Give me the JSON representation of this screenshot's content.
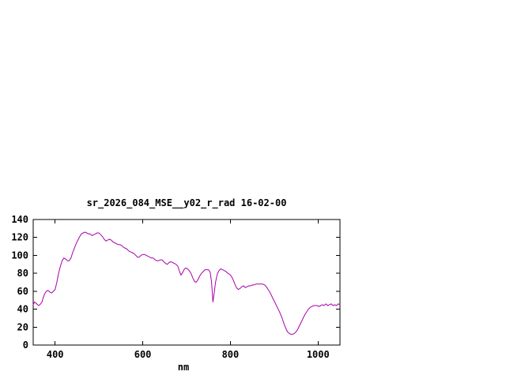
{
  "chart_data": {
    "type": "line",
    "title": "sr_2026_084_MSE__y02_r_rad 16-02-00",
    "xlabel": "nm",
    "ylabel": "",
    "xlim": [
      350,
      1050
    ],
    "ylim": [
      0,
      140
    ],
    "x_ticks": [
      400,
      600,
      800,
      1000
    ],
    "y_ticks": [
      0,
      20,
      40,
      60,
      80,
      100,
      120,
      140
    ],
    "grid": false,
    "legend_position": "none",
    "line_color": "#aa00aa",
    "axis_color": "#000000",
    "points": [
      [
        350,
        45
      ],
      [
        353,
        48
      ],
      [
        356,
        47
      ],
      [
        360,
        45
      ],
      [
        363,
        44
      ],
      [
        367,
        46
      ],
      [
        370,
        48
      ],
      [
        373,
        53
      ],
      [
        376,
        57
      ],
      [
        380,
        60
      ],
      [
        384,
        61
      ],
      [
        388,
        59
      ],
      [
        392,
        58
      ],
      [
        396,
        60
      ],
      [
        400,
        62
      ],
      [
        404,
        70
      ],
      [
        408,
        80
      ],
      [
        412,
        88
      ],
      [
        416,
        94
      ],
      [
        420,
        97
      ],
      [
        424,
        96
      ],
      [
        428,
        94
      ],
      [
        432,
        94
      ],
      [
        436,
        97
      ],
      [
        440,
        103
      ],
      [
        444,
        108
      ],
      [
        448,
        113
      ],
      [
        452,
        117
      ],
      [
        456,
        121
      ],
      [
        460,
        124
      ],
      [
        464,
        125
      ],
      [
        468,
        126
      ],
      [
        472,
        125
      ],
      [
        476,
        124
      ],
      [
        480,
        124
      ],
      [
        484,
        122
      ],
      [
        488,
        123
      ],
      [
        492,
        124
      ],
      [
        496,
        125
      ],
      [
        500,
        125
      ],
      [
        504,
        123
      ],
      [
        508,
        121
      ],
      [
        512,
        118
      ],
      [
        516,
        116
      ],
      [
        520,
        117
      ],
      [
        524,
        118
      ],
      [
        528,
        117
      ],
      [
        532,
        115
      ],
      [
        536,
        114
      ],
      [
        540,
        113
      ],
      [
        544,
        112
      ],
      [
        548,
        112
      ],
      [
        552,
        111
      ],
      [
        556,
        109
      ],
      [
        560,
        108
      ],
      [
        564,
        107
      ],
      [
        568,
        105
      ],
      [
        572,
        104
      ],
      [
        576,
        103
      ],
      [
        580,
        102
      ],
      [
        584,
        100
      ],
      [
        588,
        98
      ],
      [
        592,
        98
      ],
      [
        596,
        100
      ],
      [
        600,
        101
      ],
      [
        604,
        101
      ],
      [
        608,
        100
      ],
      [
        612,
        99
      ],
      [
        616,
        98
      ],
      [
        620,
        97
      ],
      [
        624,
        97
      ],
      [
        628,
        95
      ],
      [
        632,
        94
      ],
      [
        636,
        94
      ],
      [
        640,
        95
      ],
      [
        644,
        95
      ],
      [
        648,
        93
      ],
      [
        652,
        91
      ],
      [
        656,
        90
      ],
      [
        660,
        92
      ],
      [
        664,
        93
      ],
      [
        668,
        92
      ],
      [
        672,
        91
      ],
      [
        676,
        90
      ],
      [
        680,
        88
      ],
      [
        684,
        82
      ],
      [
        687,
        78
      ],
      [
        690,
        80
      ],
      [
        694,
        84
      ],
      [
        698,
        86
      ],
      [
        702,
        85
      ],
      [
        706,
        83
      ],
      [
        710,
        80
      ],
      [
        714,
        75
      ],
      [
        718,
        71
      ],
      [
        722,
        70
      ],
      [
        726,
        73
      ],
      [
        730,
        77
      ],
      [
        734,
        80
      ],
      [
        738,
        82
      ],
      [
        742,
        84
      ],
      [
        746,
        84
      ],
      [
        750,
        84
      ],
      [
        754,
        81
      ],
      [
        757,
        70
      ],
      [
        760,
        48
      ],
      [
        763,
        58
      ],
      [
        766,
        70
      ],
      [
        770,
        79
      ],
      [
        774,
        83
      ],
      [
        778,
        85
      ],
      [
        782,
        84
      ],
      [
        786,
        83
      ],
      [
        790,
        82
      ],
      [
        794,
        80
      ],
      [
        798,
        79
      ],
      [
        802,
        77
      ],
      [
        806,
        73
      ],
      [
        810,
        68
      ],
      [
        814,
        64
      ],
      [
        818,
        62
      ],
      [
        822,
        63
      ],
      [
        826,
        65
      ],
      [
        830,
        66
      ],
      [
        834,
        64
      ],
      [
        838,
        65
      ],
      [
        842,
        66
      ],
      [
        846,
        66
      ],
      [
        850,
        67
      ],
      [
        854,
        67
      ],
      [
        858,
        68
      ],
      [
        862,
        68
      ],
      [
        866,
        68
      ],
      [
        870,
        68
      ],
      [
        874,
        68
      ],
      [
        878,
        67
      ],
      [
        882,
        65
      ],
      [
        886,
        62
      ],
      [
        890,
        59
      ],
      [
        894,
        55
      ],
      [
        898,
        51
      ],
      [
        902,
        47
      ],
      [
        906,
        43
      ],
      [
        910,
        39
      ],
      [
        914,
        35
      ],
      [
        918,
        30
      ],
      [
        922,
        24
      ],
      [
        926,
        19
      ],
      [
        930,
        15
      ],
      [
        934,
        13
      ],
      [
        938,
        12
      ],
      [
        942,
        12
      ],
      [
        946,
        13
      ],
      [
        950,
        15
      ],
      [
        954,
        18
      ],
      [
        958,
        22
      ],
      [
        962,
        26
      ],
      [
        966,
        30
      ],
      [
        970,
        34
      ],
      [
        974,
        37
      ],
      [
        978,
        40
      ],
      [
        982,
        42
      ],
      [
        986,
        43
      ],
      [
        990,
        44
      ],
      [
        994,
        44
      ],
      [
        998,
        44
      ],
      [
        1002,
        43
      ],
      [
        1006,
        44
      ],
      [
        1010,
        45
      ],
      [
        1014,
        44
      ],
      [
        1018,
        46
      ],
      [
        1022,
        44
      ],
      [
        1026,
        45
      ],
      [
        1030,
        46
      ],
      [
        1034,
        44
      ],
      [
        1038,
        45
      ],
      [
        1042,
        44
      ],
      [
        1046,
        46
      ],
      [
        1050,
        45
      ]
    ]
  }
}
